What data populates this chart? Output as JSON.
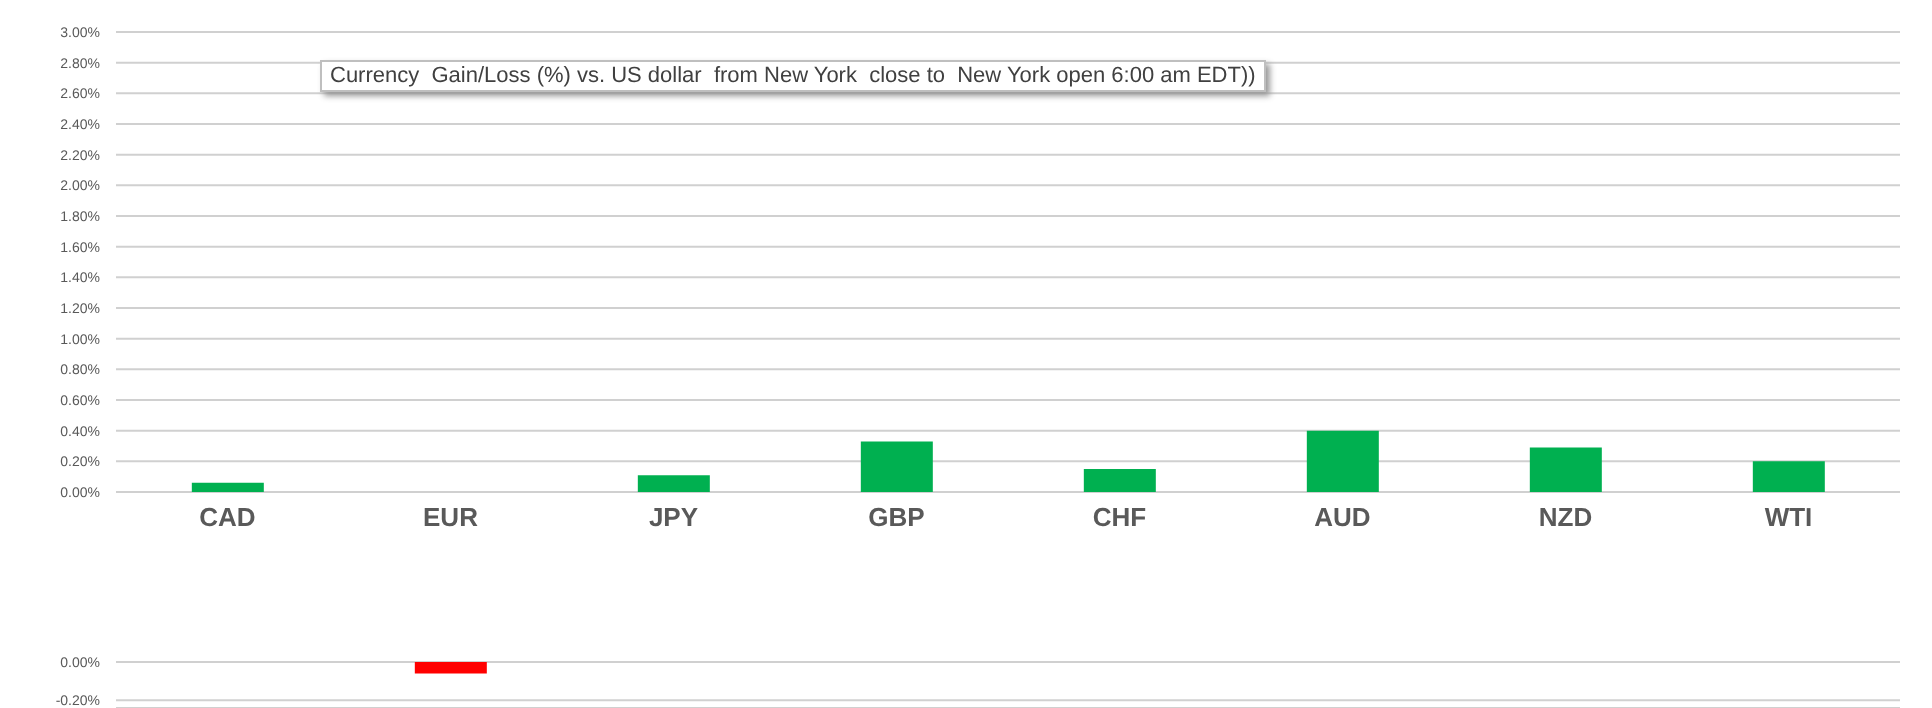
{
  "chart_data": [
    {
      "type": "bar",
      "title": "Currency  Gain/Loss (%) vs. US dollar  from New York  close to  New York open 6:00 am EDT))",
      "categories": [
        "CAD",
        "EUR",
        "JPY",
        "GBP",
        "CHF",
        "AUD",
        "NZD",
        "WTI"
      ],
      "series": [
        {
          "color": "#00b050",
          "values": [
            0.06,
            null,
            0.11,
            0.33,
            0.15,
            0.4,
            0.29,
            0.2
          ]
        }
      ],
      "ylim": [
        0,
        3
      ],
      "yticks": [
        {
          "value": 0,
          "label": "0.00%"
        },
        {
          "value": 0.2,
          "label": "0.20%"
        },
        {
          "value": 0.4,
          "label": "0.40%"
        },
        {
          "value": 0.6,
          "label": "0.60%"
        },
        {
          "value": 0.8,
          "label": "0.80%"
        },
        {
          "value": 1.0,
          "label": "1.00%"
        },
        {
          "value": 1.2,
          "label": "1.20%"
        },
        {
          "value": 1.4,
          "label": "1.40%"
        },
        {
          "value": 1.6,
          "label": "1.60%"
        },
        {
          "value": 1.8,
          "label": "1.80%"
        },
        {
          "value": 2.0,
          "label": "2.00%"
        },
        {
          "value": 2.2,
          "label": "2.20%"
        },
        {
          "value": 2.4,
          "label": "2.40%"
        },
        {
          "value": 2.6,
          "label": "2.60%"
        },
        {
          "value": 2.8,
          "label": "2.80%"
        },
        {
          "value": 3.0,
          "label": "3.00%"
        }
      ],
      "grid": "y"
    },
    {
      "type": "bar",
      "categories": [
        null,
        null,
        null,
        null,
        null,
        null,
        null,
        null
      ],
      "series": [
        {
          "color": "#ff0000",
          "values": [
            null,
            -0.06,
            null,
            null,
            null,
            null,
            null,
            null
          ]
        }
      ],
      "ylim": [
        -0.24,
        0
      ],
      "yticks": [
        {
          "value": -0.2,
          "label": "-0.20%"
        },
        {
          "value": 0,
          "label": "0.00%"
        }
      ],
      "grid": "y",
      "tick_labels": "y"
    }
  ]
}
